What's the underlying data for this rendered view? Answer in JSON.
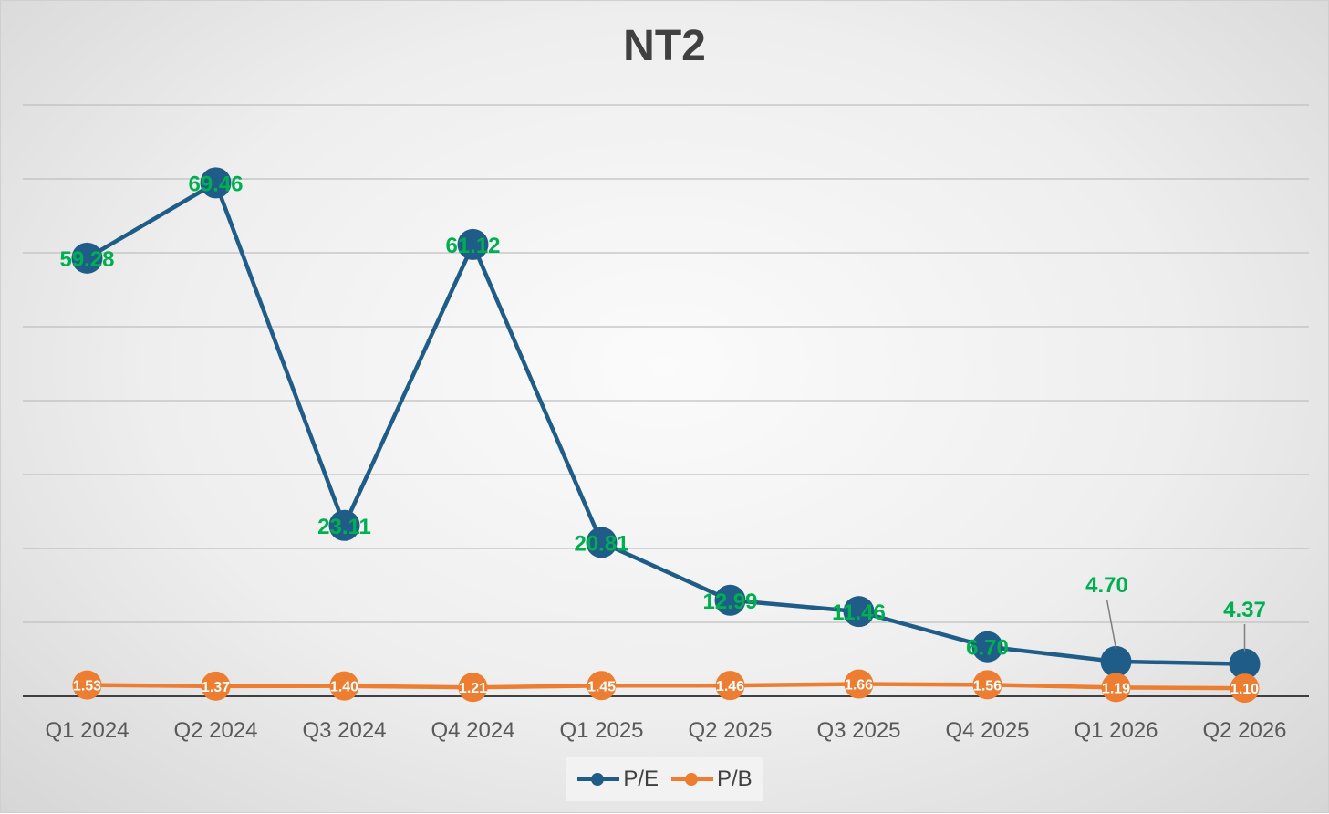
{
  "chart_data": {
    "type": "line",
    "title": "NT2",
    "categories": [
      "Q1 2024",
      "Q2 2024",
      "Q3 2024",
      "Q4 2024",
      "Q1 2025",
      "Q2 2025",
      "Q3 2025",
      "Q4 2025",
      "Q1 2026",
      "Q2 2026"
    ],
    "series": [
      {
        "name": "P/E",
        "color": "#1f5c87",
        "values": [
          59.28,
          69.46,
          23.11,
          61.12,
          20.81,
          12.99,
          11.46,
          6.7,
          4.7,
          4.37
        ],
        "labels": [
          "59.28",
          "69.46",
          "23.11",
          "61.12",
          "20.81",
          "12.99",
          "11.46",
          "6.70",
          "4.70",
          "4.37"
        ],
        "label_color": "#00b050"
      },
      {
        "name": "P/B",
        "color": "#ed7d31",
        "values": [
          1.53,
          1.37,
          1.4,
          1.21,
          1.45,
          1.46,
          1.66,
          1.56,
          1.19,
          1.1
        ],
        "labels": [
          "1.53",
          "1.37",
          "1.40",
          "1.21",
          "1.45",
          "1.46",
          "1.66",
          "1.56",
          "1.19",
          "1.10"
        ],
        "label_color": "#ffffff"
      }
    ],
    "ylim": [
      0,
      80
    ],
    "gridlines": true,
    "y_tick_labels_visible": false,
    "legend_position": "bottom"
  }
}
